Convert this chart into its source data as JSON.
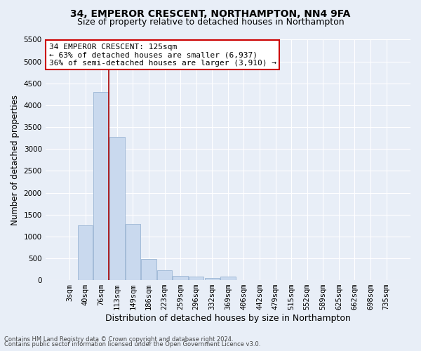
{
  "title_line1": "34, EMPEROR CRESCENT, NORTHAMPTON, NN4 9FA",
  "title_line2": "Size of property relative to detached houses in Northampton",
  "xlabel": "Distribution of detached houses by size in Northampton",
  "ylabel": "Number of detached properties",
  "categories": [
    "3sqm",
    "40sqm",
    "76sqm",
    "113sqm",
    "149sqm",
    "186sqm",
    "223sqm",
    "259sqm",
    "296sqm",
    "332sqm",
    "369sqm",
    "406sqm",
    "442sqm",
    "479sqm",
    "515sqm",
    "552sqm",
    "589sqm",
    "625sqm",
    "662sqm",
    "698sqm",
    "735sqm"
  ],
  "values": [
    0,
    1250,
    4300,
    3280,
    1280,
    480,
    220,
    100,
    75,
    50,
    75,
    0,
    0,
    0,
    0,
    0,
    0,
    0,
    0,
    0,
    0
  ],
  "bar_color": "#c9d9ee",
  "bar_edge_color": "#9ab5d4",
  "vline_x": 2.5,
  "vline_color": "#aa0000",
  "ylim": [
    0,
    5500
  ],
  "yticks": [
    0,
    500,
    1000,
    1500,
    2000,
    2500,
    3000,
    3500,
    4000,
    4500,
    5000,
    5500
  ],
  "annotation_text": "34 EMPEROR CRESCENT: 125sqm\n← 63% of detached houses are smaller (6,937)\n36% of semi-detached houses are larger (3,910) →",
  "annotation_box_color": "#ffffff",
  "annotation_box_edge_color": "#cc0000",
  "footer_line1": "Contains HM Land Registry data © Crown copyright and database right 2024.",
  "footer_line2": "Contains public sector information licensed under the Open Government Licence v3.0.",
  "bg_color": "#e8eef7",
  "plot_bg_color": "#e8eef7",
  "grid_color": "#ffffff",
  "title_fontsize": 10,
  "subtitle_fontsize": 9,
  "tick_fontsize": 7.5,
  "ylabel_fontsize": 8.5,
  "xlabel_fontsize": 9,
  "annotation_fontsize": 8,
  "footer_fontsize": 6
}
